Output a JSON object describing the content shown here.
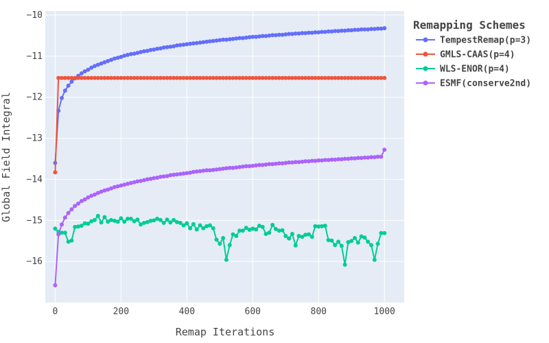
{
  "chart_data": {
    "type": "line",
    "title": "",
    "xlabel": "Remap Iterations",
    "ylabel": "Global Field Integral",
    "xlim": [
      -30,
      1060
    ],
    "ylim": [
      -17.0,
      -9.9
    ],
    "x_ticks": [
      0,
      200,
      400,
      600,
      800,
      1000
    ],
    "x_tick_labels": [
      "0",
      "200",
      "400",
      "600",
      "800",
      "1000"
    ],
    "y_ticks": [
      -10,
      -11,
      -12,
      -13,
      -14,
      -15,
      -16
    ],
    "y_tick_labels": [
      "−10",
      "−11",
      "−12",
      "−13",
      "−14",
      "−15",
      "−16"
    ],
    "grid": true,
    "legend": {
      "title": "Remapping Schemes",
      "position": "right"
    },
    "x": [
      0,
      10,
      20,
      30,
      40,
      50,
      60,
      70,
      80,
      90,
      100,
      110,
      120,
      130,
      140,
      150,
      160,
      170,
      180,
      190,
      200,
      210,
      220,
      230,
      240,
      250,
      260,
      270,
      280,
      290,
      300,
      310,
      320,
      330,
      340,
      350,
      360,
      370,
      380,
      390,
      400,
      410,
      420,
      430,
      440,
      450,
      460,
      470,
      480,
      490,
      500,
      510,
      520,
      530,
      540,
      550,
      560,
      570,
      580,
      590,
      600,
      610,
      620,
      630,
      640,
      650,
      660,
      670,
      680,
      690,
      700,
      710,
      720,
      730,
      740,
      750,
      760,
      770,
      780,
      790,
      800,
      810,
      820,
      830,
      840,
      850,
      860,
      870,
      880,
      890,
      900,
      910,
      920,
      930,
      940,
      950,
      960,
      970,
      980,
      990,
      1000
    ],
    "series": [
      {
        "name": "TempestRemap(p=3)",
        "color": "#636efa",
        "values": [
          -13.6,
          -12.33,
          -12.02,
          -11.84,
          -11.72,
          -11.62,
          -11.54,
          -11.48,
          -11.42,
          -11.37,
          -11.33,
          -11.28,
          -11.24,
          -11.21,
          -11.18,
          -11.15,
          -11.12,
          -11.09,
          -11.06,
          -11.04,
          -11.02,
          -10.99,
          -10.97,
          -10.95,
          -10.94,
          -10.92,
          -10.9,
          -10.88,
          -10.87,
          -10.85,
          -10.84,
          -10.82,
          -10.81,
          -10.79,
          -10.78,
          -10.77,
          -10.76,
          -10.74,
          -10.73,
          -10.72,
          -10.71,
          -10.7,
          -10.69,
          -10.68,
          -10.67,
          -10.66,
          -10.65,
          -10.64,
          -10.63,
          -10.62,
          -10.61,
          -10.6,
          -10.6,
          -10.59,
          -10.58,
          -10.57,
          -10.56,
          -10.56,
          -10.55,
          -10.54,
          -10.53,
          -10.53,
          -10.52,
          -10.51,
          -10.51,
          -10.5,
          -10.49,
          -10.49,
          -10.48,
          -10.48,
          -10.47,
          -10.46,
          -10.46,
          -10.45,
          -10.45,
          -10.44,
          -10.44,
          -10.43,
          -10.43,
          -10.42,
          -10.42,
          -10.41,
          -10.41,
          -10.4,
          -10.4,
          -10.39,
          -10.39,
          -10.38,
          -10.38,
          -10.37,
          -10.37,
          -10.36,
          -10.36,
          -10.35,
          -10.35,
          -10.35,
          -10.34,
          -10.34,
          -10.33,
          -10.33,
          -10.32
        ]
      },
      {
        "name": "GMLS-CAAS(p=4)",
        "color": "#ef553b",
        "values": [
          -13.83,
          -11.53,
          -11.53,
          -11.53,
          -11.53,
          -11.53,
          -11.53,
          -11.53,
          -11.53,
          -11.53,
          -11.53,
          -11.53,
          -11.53,
          -11.53,
          -11.53,
          -11.53,
          -11.53,
          -11.53,
          -11.53,
          -11.53,
          -11.53,
          -11.53,
          -11.53,
          -11.53,
          -11.53,
          -11.53,
          -11.53,
          -11.53,
          -11.53,
          -11.53,
          -11.53,
          -11.53,
          -11.53,
          -11.53,
          -11.53,
          -11.53,
          -11.53,
          -11.53,
          -11.53,
          -11.53,
          -11.53,
          -11.53,
          -11.53,
          -11.53,
          -11.53,
          -11.53,
          -11.53,
          -11.53,
          -11.53,
          -11.53,
          -11.53,
          -11.53,
          -11.53,
          -11.53,
          -11.53,
          -11.53,
          -11.53,
          -11.53,
          -11.53,
          -11.53,
          -11.53,
          -11.53,
          -11.53,
          -11.53,
          -11.53,
          -11.53,
          -11.53,
          -11.53,
          -11.53,
          -11.53,
          -11.53,
          -11.53,
          -11.53,
          -11.53,
          -11.53,
          -11.53,
          -11.53,
          -11.53,
          -11.53,
          -11.53,
          -11.53,
          -11.53,
          -11.53,
          -11.53,
          -11.53,
          -11.53,
          -11.53,
          -11.53,
          -11.53,
          -11.53,
          -11.53,
          -11.53,
          -11.53,
          -11.53,
          -11.53,
          -11.53,
          -11.53,
          -11.53,
          -11.53,
          -11.53,
          -11.53
        ]
      },
      {
        "name": "WLS-ENOR(p=4)",
        "color": "#00cc96",
        "values": [
          -15.2,
          -15.28,
          -15.3,
          -15.3,
          -15.52,
          -15.49,
          -15.16,
          -15.15,
          -15.13,
          -15.07,
          -15.08,
          -15.02,
          -14.99,
          -14.89,
          -15.05,
          -14.92,
          -15.03,
          -14.99,
          -15.01,
          -15.03,
          -14.95,
          -15.03,
          -14.96,
          -14.96,
          -15.02,
          -14.98,
          -15.1,
          -15.06,
          -15.04,
          -15.01,
          -15.0,
          -14.96,
          -14.99,
          -15.06,
          -14.98,
          -15.05,
          -14.99,
          -15.04,
          -15.06,
          -15.12,
          -15.07,
          -15.19,
          -15.09,
          -15.22,
          -15.12,
          -15.19,
          -15.14,
          -15.12,
          -15.19,
          -15.47,
          -15.57,
          -15.43,
          -15.96,
          -15.6,
          -15.34,
          -15.38,
          -15.25,
          -15.25,
          -15.18,
          -15.23,
          -15.2,
          -15.22,
          -15.13,
          -15.16,
          -15.33,
          -15.3,
          -15.11,
          -15.21,
          -15.25,
          -15.24,
          -15.38,
          -15.44,
          -15.33,
          -15.61,
          -15.38,
          -15.4,
          -15.35,
          -15.34,
          -15.4,
          -15.14,
          -15.15,
          -15.14,
          -15.13,
          -15.48,
          -15.49,
          -15.6,
          -15.52,
          -15.62,
          -16.08,
          -15.53,
          -15.5,
          -15.43,
          -15.54,
          -15.39,
          -15.42,
          -15.52,
          -15.6,
          -15.96,
          -15.57,
          -15.31,
          -15.31
        ]
      },
      {
        "name": "ESMF(conserve2nd)",
        "color": "#ab63fa",
        "values": [
          -16.58,
          -15.34,
          -15.1,
          -14.93,
          -14.82,
          -14.73,
          -14.65,
          -14.59,
          -14.53,
          -14.49,
          -14.44,
          -14.4,
          -14.37,
          -14.33,
          -14.3,
          -14.27,
          -14.25,
          -14.22,
          -14.19,
          -14.17,
          -14.15,
          -14.13,
          -14.11,
          -14.09,
          -14.07,
          -14.05,
          -14.04,
          -14.02,
          -14.0,
          -13.99,
          -13.97,
          -13.96,
          -13.94,
          -13.93,
          -13.92,
          -13.9,
          -13.89,
          -13.88,
          -13.87,
          -13.86,
          -13.85,
          -13.84,
          -13.82,
          -13.81,
          -13.8,
          -13.79,
          -13.78,
          -13.78,
          -13.77,
          -13.76,
          -13.75,
          -13.74,
          -13.73,
          -13.72,
          -13.72,
          -13.71,
          -13.7,
          -13.69,
          -13.68,
          -13.68,
          -13.67,
          -13.66,
          -13.65,
          -13.65,
          -13.64,
          -13.63,
          -13.63,
          -13.62,
          -13.61,
          -13.61,
          -13.6,
          -13.59,
          -13.59,
          -13.58,
          -13.58,
          -13.57,
          -13.56,
          -13.56,
          -13.55,
          -13.55,
          -13.54,
          -13.54,
          -13.53,
          -13.53,
          -13.52,
          -13.52,
          -13.51,
          -13.51,
          -13.5,
          -13.5,
          -13.49,
          -13.49,
          -13.48,
          -13.48,
          -13.47,
          -13.47,
          -13.46,
          -13.46,
          -13.45,
          -13.45,
          -13.28
        ]
      }
    ]
  }
}
